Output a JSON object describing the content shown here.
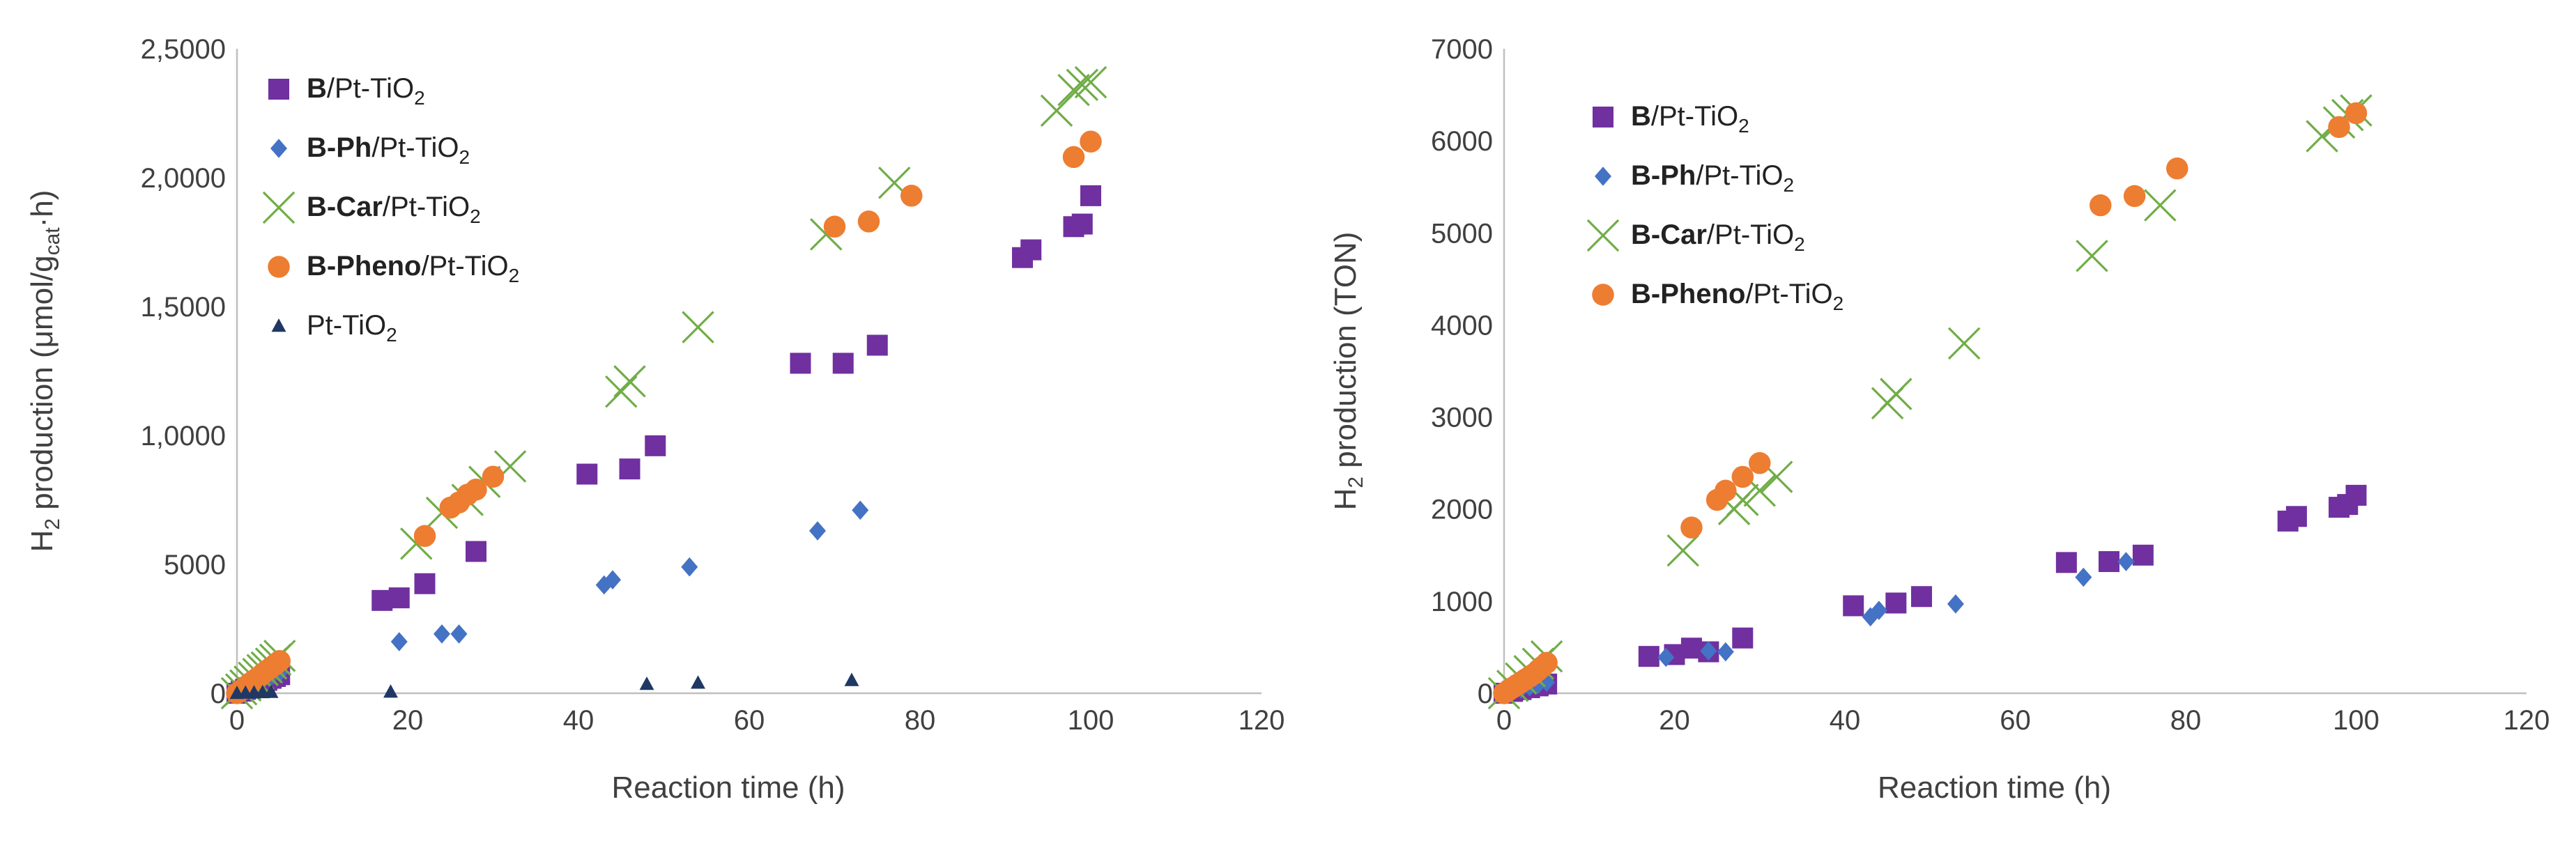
{
  "charts": [
    {
      "panel": "left",
      "ylabel": {
        "main": "H",
        "sub": "2",
        "rest": " production (μmol/g",
        "sub2": "cat",
        "tail": "·h)"
      },
      "xlabel": "Reaction time (h)"
    },
    {
      "panel": "right",
      "ylabel": {
        "main": "H",
        "sub": "2",
        "rest": " production (TON)"
      },
      "xlabel": "Reaction time (h)"
    }
  ],
  "chart_data": [
    {
      "type": "scatter",
      "title": "",
      "xlabel": "Reaction time (h)",
      "ylabel": "H2 production (μmol/gcat·h)",
      "xlim": [
        0,
        120
      ],
      "ylim": [
        0,
        25000
      ],
      "xticks": [
        "0",
        "20",
        "40",
        "60",
        "80",
        "100",
        "120"
      ],
      "yticks": [
        "0",
        "5000",
        "1,0000",
        "1,5000",
        "2,0000",
        "2,5000"
      ],
      "legend_position": "top-left",
      "series": [
        {
          "name_bold": "B",
          "name_rest": "/Pt-TiO",
          "name_sub": "2",
          "marker": "square",
          "color": "#7030a0",
          "x": [
            0,
            0.5,
            1,
            1.5,
            2,
            2.5,
            3,
            3.5,
            4,
            4.5,
            5,
            17,
            19,
            22,
            28,
            41,
            46,
            49,
            66,
            71,
            75,
            92,
            93,
            98,
            99,
            100
          ],
          "y": [
            0,
            80,
            150,
            220,
            290,
            360,
            430,
            500,
            580,
            650,
            720,
            3600,
            3700,
            4250,
            5500,
            8500,
            8700,
            9600,
            12800,
            12800,
            13500,
            16900,
            17200,
            18100,
            18200,
            19300
          ]
        },
        {
          "name_bold": "B-Ph",
          "name_rest": "/Pt-TiO",
          "name_sub": "2",
          "marker": "diamond",
          "color": "#4472c4",
          "x": [
            0,
            0.5,
            1,
            2,
            3,
            4,
            5,
            19,
            24,
            26,
            43,
            44,
            53,
            68,
            73
          ],
          "y": [
            0,
            100,
            200,
            350,
            500,
            650,
            800,
            2000,
            2300,
            2300,
            4200,
            4400,
            4900,
            6300,
            7100
          ]
        },
        {
          "name_bold": "B-Car",
          "name_rest": "/Pt-TiO",
          "name_sub": "2",
          "marker": "x",
          "color": "#70ad47",
          "x": [
            0,
            0.5,
            1,
            1.5,
            2,
            2.5,
            3,
            3.5,
            4,
            4.5,
            5,
            21,
            24,
            27,
            29,
            32,
            45,
            46,
            54,
            69,
            77,
            96,
            98,
            99,
            100
          ],
          "y": [
            0,
            150,
            300,
            450,
            600,
            750,
            900,
            1000,
            1150,
            1300,
            1450,
            5800,
            7000,
            7500,
            8200,
            8800,
            11700,
            12100,
            14200,
            17800,
            19800,
            22600,
            23400,
            23600,
            23700
          ]
        },
        {
          "name_bold": "B-Pheno",
          "name_rest": "/Pt-TiO",
          "name_sub": "2",
          "marker": "circle",
          "color": "#ed7d31",
          "x": [
            0,
            0.5,
            1,
            1.5,
            2,
            2.5,
            3,
            3.5,
            4,
            4.5,
            5,
            22,
            25,
            26,
            27,
            28,
            30,
            70,
            74,
            79,
            98,
            100
          ],
          "y": [
            0,
            120,
            250,
            380,
            500,
            620,
            750,
            880,
            1000,
            1120,
            1250,
            6100,
            7200,
            7400,
            7700,
            7900,
            8400,
            18100,
            18300,
            19300,
            20800,
            21400
          ]
        },
        {
          "name_bold": "",
          "name_rest": "Pt-TiO",
          "name_sub": "2",
          "marker": "triangle",
          "color": "#1f3864",
          "x": [
            0,
            1,
            2,
            3,
            4,
            18,
            48,
            54,
            72
          ],
          "y": [
            0,
            10,
            20,
            30,
            40,
            50,
            350,
            400,
            500
          ]
        }
      ]
    },
    {
      "type": "scatter",
      "title": "",
      "xlabel": "Reaction time (h)",
      "ylabel": "H2 production (TON)",
      "xlim": [
        0,
        120
      ],
      "ylim": [
        0,
        7000
      ],
      "xticks": [
        "0",
        "20",
        "40",
        "60",
        "80",
        "100",
        "120"
      ],
      "yticks": [
        "0",
        "1000",
        "2000",
        "3000",
        "4000",
        "5000",
        "6000",
        "7000"
      ],
      "legend_position": "top-left",
      "series": [
        {
          "name_bold": "B",
          "name_rest": "/Pt-TiO",
          "name_sub": "2",
          "marker": "square",
          "color": "#7030a0",
          "x": [
            0,
            1,
            2,
            3,
            4,
            5,
            17,
            20,
            22,
            24,
            28,
            41,
            46,
            49,
            66,
            71,
            75,
            92,
            93,
            98,
            99,
            100
          ],
          "y": [
            0,
            20,
            40,
            60,
            80,
            100,
            400,
            420,
            490,
            450,
            600,
            950,
            980,
            1050,
            1420,
            1430,
            1500,
            1870,
            1920,
            2020,
            2050,
            2150
          ]
        },
        {
          "name_bold": "B-Ph",
          "name_rest": "/Pt-TiO",
          "name_sub": "2",
          "marker": "diamond",
          "color": "#4472c4",
          "x": [
            0,
            1,
            2,
            3,
            4,
            5,
            19,
            24,
            26,
            43,
            44,
            53,
            68,
            73
          ],
          "y": [
            0,
            20,
            45,
            70,
            95,
            120,
            390,
            460,
            450,
            830,
            900,
            970,
            1260,
            1430
          ]
        },
        {
          "name_bold": "B-Car",
          "name_rest": "/Pt-TiO",
          "name_sub": "2",
          "marker": "x",
          "color": "#70ad47",
          "x": [
            0,
            1,
            2,
            3,
            4,
            5,
            21,
            27,
            28,
            30,
            32,
            45,
            46,
            54,
            69,
            77,
            96,
            98,
            99,
            100
          ],
          "y": [
            0,
            80,
            160,
            240,
            320,
            400,
            1550,
            2000,
            2100,
            2200,
            2350,
            3150,
            3250,
            3800,
            4750,
            5300,
            6050,
            6200,
            6280,
            6330
          ]
        },
        {
          "name_bold": "B-Pheno",
          "name_rest": "/Pt-TiO",
          "name_sub": "2",
          "marker": "circle",
          "color": "#ed7d31",
          "x": [
            0,
            0.5,
            1,
            1.5,
            2,
            2.5,
            3,
            3.5,
            4,
            4.5,
            5,
            22,
            25,
            26,
            28,
            30,
            70,
            74,
            79,
            98,
            100
          ],
          "y": [
            0,
            30,
            60,
            90,
            120,
            150,
            180,
            210,
            250,
            290,
            330,
            1800,
            2100,
            2200,
            2350,
            2500,
            5300,
            5400,
            5700,
            6150,
            6300
          ]
        }
      ]
    }
  ]
}
